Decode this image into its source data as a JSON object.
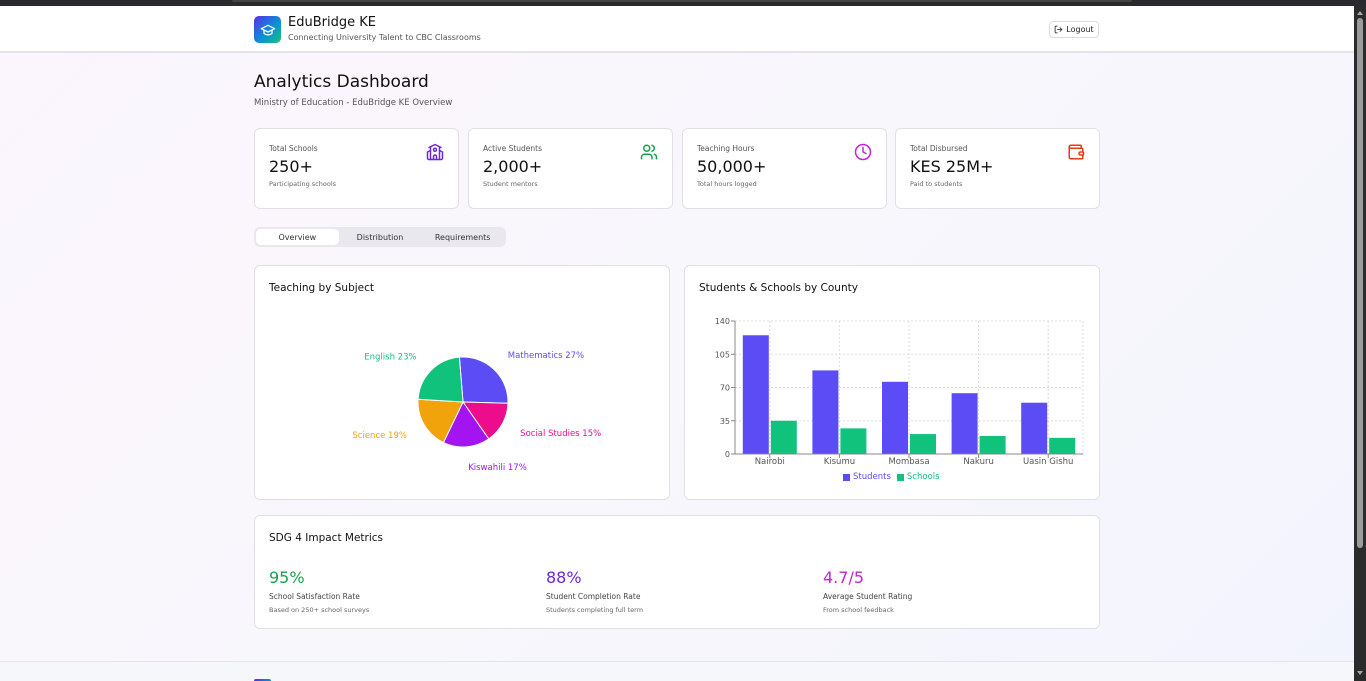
{
  "app": {
    "title": "EduBridge KE",
    "subtitle": "Connecting University Talent to CBC Classrooms",
    "logo_icon": "graduation-cap-icon",
    "logout_label": "Logout",
    "logout_icon": "logout-icon"
  },
  "page": {
    "title": "Analytics Dashboard",
    "subtitle": "Ministry of Education - EduBridge KE Overview"
  },
  "stats": [
    {
      "label": "Total Schools",
      "value": "250+",
      "sub": "Participating schools",
      "icon": "school-icon",
      "color": "#6d28d9"
    },
    {
      "label": "Active Students",
      "value": "2,000+",
      "sub": "Student mentors",
      "icon": "users-icon",
      "color": "#16a34a"
    },
    {
      "label": "Teaching Hours",
      "value": "50,000+",
      "sub": "Total hours logged",
      "icon": "clock-icon",
      "color": "#c026d3"
    },
    {
      "label": "Total Disbursed",
      "value": "KES 25M+",
      "sub": "Paid to students",
      "icon": "wallet-icon",
      "color": "#ea3a12"
    }
  ],
  "tabs": [
    {
      "label": "Overview",
      "active": true
    },
    {
      "label": "Distribution",
      "active": false
    },
    {
      "label": "Requirements",
      "active": false
    }
  ],
  "pie_card": {
    "title": "Teaching by Subject"
  },
  "bar_card": {
    "title": "Students & Schools by County"
  },
  "chart_data": [
    {
      "type": "pie",
      "title": "Teaching by Subject",
      "slices": [
        {
          "label": "Mathematics",
          "value": 27,
          "display": "Mathematics 27%",
          "color": "#5b4cf5"
        },
        {
          "label": "Social Studies",
          "value": 15,
          "display": "Social Studies 15%",
          "color": "#ec0c8c"
        },
        {
          "label": "Kiswahili",
          "value": 17,
          "display": "Kiswahili 17%",
          "color": "#a414f0"
        },
        {
          "label": "Science",
          "value": 19,
          "display": "Science 19%",
          "color": "#f1a30b"
        },
        {
          "label": "English",
          "value": 23,
          "display": "English 23%",
          "color": "#10c27c"
        }
      ]
    },
    {
      "type": "bar",
      "title": "Students & Schools by County",
      "categories": [
        "Nairobi",
        "Kisumu",
        "Mombasa",
        "Nakuru",
        "Uasin Gishu"
      ],
      "series": [
        {
          "name": "Students",
          "values": [
            125,
            88,
            76,
            64,
            54
          ],
          "color": "#5b4cf5"
        },
        {
          "name": "Schools",
          "values": [
            35,
            27,
            21,
            19,
            17
          ],
          "color": "#10c27c"
        }
      ],
      "ylim": [
        0,
        140
      ],
      "yticks": [
        0,
        35,
        70,
        105,
        140
      ],
      "grid": true,
      "legend": "bottom-center"
    }
  ],
  "impact": {
    "title": "SDG 4 Impact Metrics",
    "metrics": [
      {
        "value": "95%",
        "label": "School Satisfaction Rate",
        "sub": "Based on 250+ school surveys",
        "color": "#16a34a"
      },
      {
        "value": "88%",
        "label": "Student Completion Rate",
        "sub": "Students completing full term",
        "color": "#6d28d9"
      },
      {
        "value": "4.7/5",
        "label": "Average Student Rating",
        "sub": "From school feedback",
        "color": "#c026d3"
      }
    ]
  }
}
